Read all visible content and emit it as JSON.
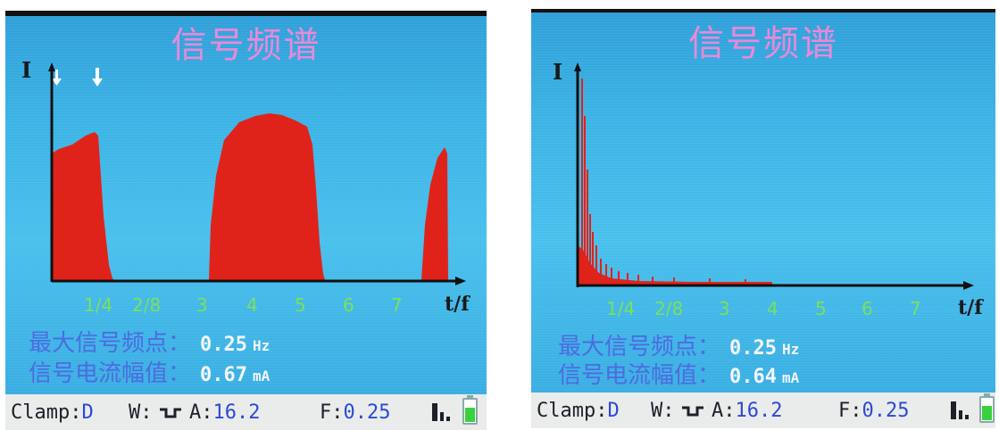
{
  "left": {
    "title": "信号频谱",
    "axis_y": "I",
    "axis_x": "t/f",
    "ticks": [
      "1/4",
      "2/8",
      "3",
      "4",
      "5",
      "6",
      "7"
    ],
    "info": [
      {
        "label": "最大信号频点：",
        "value": "0.25",
        "unit": "Hz"
      },
      {
        "label": "信号电流幅值：",
        "value": "0.67",
        "unit": "mA"
      }
    ],
    "status": {
      "clamp_label": "Clamp:",
      "clamp_value": "D",
      "w_label": "W:",
      "a_label": "A:",
      "a_value": "16.2",
      "f_label": "F:",
      "f_value": "0.25"
    }
  },
  "right": {
    "title": "信号频谱",
    "axis_y": "I",
    "axis_x": "t/f",
    "ticks": [
      "1/4",
      "2/8",
      "3",
      "4",
      "5",
      "6",
      "7"
    ],
    "info": [
      {
        "label": "最大信号频点：",
        "value": "0.25",
        "unit": "Hz"
      },
      {
        "label": "信号电流幅值：",
        "value": "0.64",
        "unit": "mA"
      }
    ],
    "status": {
      "clamp_label": "Clamp:",
      "clamp_value": "D",
      "w_label": "W:",
      "a_label": "A:",
      "a_value": "16.2",
      "f_label": "F:",
      "f_value": "0.25"
    }
  },
  "colors": {
    "spectrum": "#e0231a",
    "title": "#e78ad8",
    "ticks": "#7ce05a",
    "labels": "#4d6be0",
    "values": "#f3f7ff"
  },
  "icons": [
    "down-arrow-marker-icon",
    "square-wave-icon",
    "signal-bars-icon",
    "battery-icon"
  ]
}
